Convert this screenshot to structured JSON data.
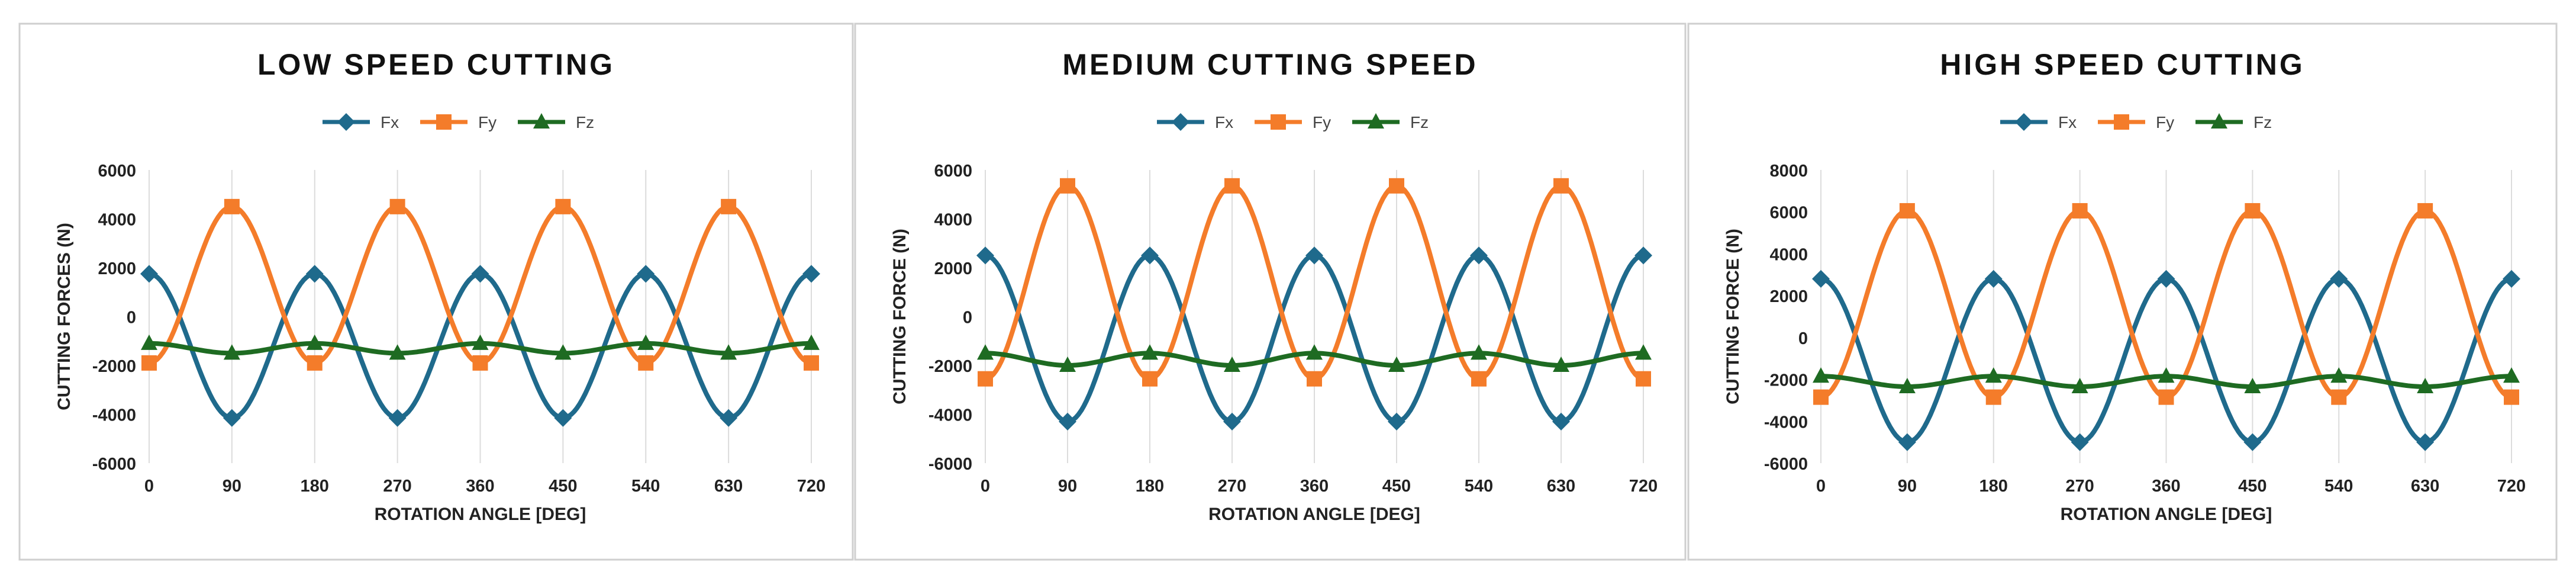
{
  "chart_data": [
    {
      "type": "line",
      "title": "LOW SPEED CUTTING",
      "xlabel": "ROTATION ANGLE [DEG]",
      "ylabel": "CUTTING FORCES (N)",
      "xlim": [
        0,
        720
      ],
      "ylim": [
        -6000,
        6000
      ],
      "x_ticks": [
        0,
        90,
        180,
        270,
        360,
        450,
        540,
        630,
        720
      ],
      "y_ticks": [
        -6000,
        -4000,
        -2000,
        0,
        2000,
        4000,
        6000
      ],
      "legend": "top-center",
      "grid": "vertical",
      "series": [
        {
          "name": "Fx",
          "color": "#1f6a8c",
          "marker": "diamond",
          "base": -1200,
          "amp": -2950,
          "phase": 0
        },
        {
          "name": "Fy",
          "color": "#f47c2a",
          "marker": "square",
          "base": 1300,
          "amp": 3200,
          "phase": 0
        },
        {
          "name": "Fz",
          "color": "#1e6b22",
          "marker": "triangle",
          "base": -1300,
          "amp": -200,
          "phase": 0
        }
      ]
    },
    {
      "type": "line",
      "title": "MEDIUM CUTTING SPEED",
      "xlabel": "ROTATION ANGLE [DEG]",
      "ylabel": "CUTTING FORCE (N)",
      "xlim": [
        0,
        720
      ],
      "ylim": [
        -6000,
        6000
      ],
      "x_ticks": [
        0,
        90,
        180,
        270,
        360,
        450,
        540,
        630,
        720
      ],
      "y_ticks": [
        -6000,
        -4000,
        -2000,
        0,
        2000,
        4000,
        6000
      ],
      "legend": "top-center",
      "grid": "vertical",
      "series": [
        {
          "name": "Fx",
          "color": "#1f6a8c",
          "marker": "diamond",
          "base": -900,
          "amp": -3400,
          "phase": 0
        },
        {
          "name": "Fy",
          "color": "#f47c2a",
          "marker": "square",
          "base": 1400,
          "amp": 3950,
          "phase": 0
        },
        {
          "name": "Fz",
          "color": "#1e6b22",
          "marker": "triangle",
          "base": -1750,
          "amp": -250,
          "phase": 0
        }
      ]
    },
    {
      "type": "line",
      "title": "HIGH SPEED CUTTING",
      "xlabel": "ROTATION ANGLE [DEG]",
      "ylabel": "CUTTING FORCE (N)",
      "xlim": [
        0,
        720
      ],
      "ylim": [
        -6000,
        8000
      ],
      "x_ticks": [
        0,
        90,
        180,
        270,
        360,
        450,
        540,
        630,
        720
      ],
      "y_ticks": [
        -6000,
        -4000,
        -2000,
        0,
        2000,
        4000,
        6000,
        8000
      ],
      "legend": "top-center",
      "grid": "vertical",
      "series": [
        {
          "name": "Fx",
          "color": "#1f6a8c",
          "marker": "diamond",
          "base": -1100,
          "amp": -3900,
          "phase": 0
        },
        {
          "name": "Fy",
          "color": "#f47c2a",
          "marker": "square",
          "base": 1600,
          "amp": 4450,
          "phase": 0
        },
        {
          "name": "Fz",
          "color": "#1e6b22",
          "marker": "triangle",
          "base": -2100,
          "amp": -250,
          "phase": 0
        }
      ]
    }
  ]
}
